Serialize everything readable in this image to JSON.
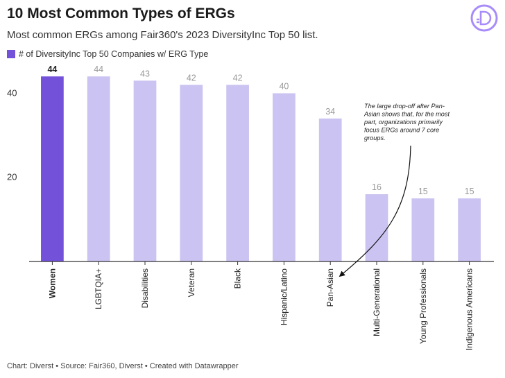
{
  "title": "10 Most Common Types of ERGs",
  "subtitle": "Most common ERGs among Fair360's 2023 DiversityInc Top 50 list.",
  "legend_label": "# of DiversityInc Top 50 Companies w/ ERG Type",
  "logo_icon": "diverst-d-logo-icon",
  "annotation_lines": [
    "The large drop-off after Pan-",
    "Asian shows that, for the most",
    "part, organizations primarily",
    "focus ERGs around 7 core",
    "groups."
  ],
  "footer": "Chart: Diverst • Source: Fair360, Diverst • Created with Datawrapper",
  "colors": {
    "highlight": "#7352d9",
    "bar": "#cbc3f1",
    "legend": "#7352d9",
    "axis": "#333333",
    "label_muted": "#999999",
    "logo": "#a78bfa"
  },
  "chart_data": {
    "type": "bar",
    "categories": [
      "Women",
      "LGBTQIA+",
      "Disabilities",
      "Veteran",
      "Black",
      "Hispanic/Latino",
      "Pan-Asian",
      "Multi-Generational",
      "Young Professionals",
      "Indigenous Americans"
    ],
    "series": [
      {
        "name": "# of DiversityInc Top 50 Companies w/ ERG Type",
        "values": [
          44,
          44,
          43,
          42,
          42,
          40,
          34,
          16,
          15,
          15
        ]
      }
    ],
    "highlight_index": 0,
    "yticks": [
      20,
      40
    ],
    "ylim": [
      0,
      47
    ],
    "grid": false,
    "legend_position": "top-left"
  }
}
